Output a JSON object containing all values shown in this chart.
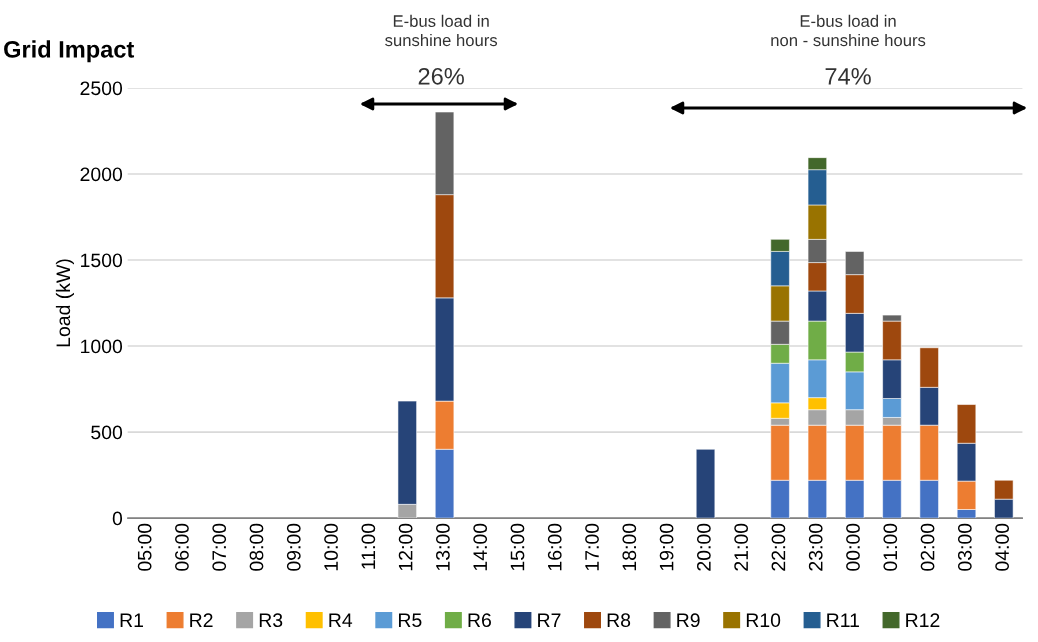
{
  "chart_data": {
    "type": "bar",
    "title": "Grid Impact",
    "ylabel": "Load (kW)",
    "categories": [
      "05:00",
      "06:00",
      "07:00",
      "08:00",
      "09:00",
      "10:00",
      "11:00",
      "12:00",
      "13:00",
      "14:00",
      "15:00",
      "16:00",
      "17:00",
      "18:00",
      "19:00",
      "20:00",
      "21:00",
      "22:00",
      "23:00",
      "00:00",
      "01:00",
      "02:00",
      "03:00",
      "04:00"
    ],
    "stacked": true,
    "ylim": [
      0,
      2500
    ],
    "yticks": [
      0,
      500,
      1000,
      1500,
      2000,
      2500
    ],
    "grid": "y",
    "legend": "bottom",
    "annotations": [
      "E-bus load in\nsunshine hours",
      "26%",
      "E-bus load in\nnon - sunshine hours",
      "74%"
    ],
    "series": [
      {
        "name": "R1",
        "color": "#4472c4",
        "values": [
          0,
          0,
          0,
          0,
          0,
          0,
          0,
          0,
          400,
          0,
          0,
          0,
          0,
          0,
          0,
          0,
          0,
          220,
          220,
          220,
          220,
          220,
          50,
          0
        ]
      },
      {
        "name": "R2",
        "color": "#ed7d31",
        "values": [
          0,
          0,
          0,
          0,
          0,
          0,
          0,
          0,
          280,
          0,
          0,
          0,
          0,
          0,
          0,
          0,
          0,
          320,
          320,
          320,
          320,
          320,
          165,
          0
        ]
      },
      {
        "name": "R3",
        "color": "#a5a5a5",
        "values": [
          0,
          0,
          0,
          0,
          0,
          0,
          0,
          80,
          0,
          0,
          0,
          0,
          0,
          0,
          0,
          0,
          0,
          40,
          90,
          90,
          45,
          0,
          0,
          0
        ]
      },
      {
        "name": "R4",
        "color": "#ffc000",
        "values": [
          0,
          0,
          0,
          0,
          0,
          0,
          0,
          0,
          0,
          0,
          0,
          0,
          0,
          0,
          0,
          0,
          0,
          90,
          70,
          0,
          0,
          0,
          0,
          0
        ]
      },
      {
        "name": "R5",
        "color": "#5b9bd5",
        "values": [
          0,
          0,
          0,
          0,
          0,
          0,
          0,
          0,
          0,
          0,
          0,
          0,
          0,
          0,
          0,
          0,
          0,
          230,
          220,
          220,
          110,
          0,
          0,
          0
        ]
      },
      {
        "name": "R6",
        "color": "#70ad47",
        "values": [
          0,
          0,
          0,
          0,
          0,
          0,
          0,
          0,
          0,
          0,
          0,
          0,
          0,
          0,
          0,
          0,
          0,
          110,
          225,
          115,
          0,
          0,
          0,
          0
        ]
      },
      {
        "name": "R7",
        "color": "#264478",
        "values": [
          0,
          0,
          0,
          0,
          0,
          0,
          0,
          600,
          600,
          0,
          0,
          0,
          0,
          0,
          0,
          400,
          0,
          0,
          175,
          225,
          225,
          220,
          220,
          110
        ]
      },
      {
        "name": "R8",
        "color": "#9e480e",
        "values": [
          0,
          0,
          0,
          0,
          0,
          0,
          0,
          0,
          600,
          0,
          0,
          0,
          0,
          0,
          0,
          0,
          0,
          0,
          165,
          225,
          225,
          230,
          225,
          110
        ]
      },
      {
        "name": "R9",
        "color": "#636363",
        "values": [
          0,
          0,
          0,
          0,
          0,
          0,
          0,
          0,
          480,
          0,
          0,
          0,
          0,
          0,
          0,
          0,
          0,
          135,
          135,
          135,
          35,
          0,
          0,
          0
        ]
      },
      {
        "name": "R10",
        "color": "#997300",
        "values": [
          0,
          0,
          0,
          0,
          0,
          0,
          0,
          0,
          0,
          0,
          0,
          0,
          0,
          0,
          0,
          0,
          0,
          205,
          200,
          0,
          0,
          0,
          0,
          0
        ]
      },
      {
        "name": "R11",
        "color": "#255e91",
        "values": [
          0,
          0,
          0,
          0,
          0,
          0,
          0,
          0,
          0,
          0,
          0,
          0,
          0,
          0,
          0,
          0,
          0,
          200,
          205,
          0,
          0,
          0,
          0,
          0
        ]
      },
      {
        "name": "R12",
        "color": "#43682b",
        "values": [
          0,
          0,
          0,
          0,
          0,
          0,
          0,
          0,
          0,
          0,
          0,
          0,
          0,
          0,
          0,
          0,
          0,
          70,
          70,
          0,
          0,
          0,
          0,
          0
        ]
      }
    ]
  }
}
